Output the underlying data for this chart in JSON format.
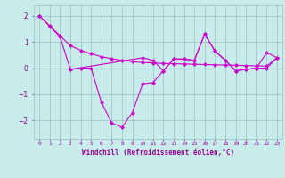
{
  "background_color": "#c8ecec",
  "line_color": "#cc00cc",
  "grid_color": "#9bbfbf",
  "font_color": "#990099",
  "xlabel": "Windchill (Refroidissement éolien,°C)",
  "ylim": [
    -2.7,
    2.4
  ],
  "yticks": [
    -2,
    -1,
    0,
    1,
    2
  ],
  "xlim": [
    -0.5,
    23.5
  ],
  "line_a_x": [
    0,
    1,
    2,
    3,
    10,
    11,
    12,
    13,
    14,
    15,
    16,
    17,
    18,
    19,
    20,
    21,
    22,
    23
  ],
  "line_a_y": [
    2.0,
    1.6,
    1.2,
    -0.05,
    0.4,
    0.3,
    -0.1,
    0.35,
    0.35,
    0.3,
    1.3,
    0.65,
    0.3,
    -0.1,
    -0.05,
    0.0,
    0.6,
    0.4
  ],
  "line_b_x": [
    0,
    1,
    2,
    3,
    4,
    5,
    6,
    7,
    8,
    9,
    10,
    11,
    12,
    13,
    14,
    15,
    16,
    17,
    18,
    19,
    20,
    21,
    22,
    23
  ],
  "line_b_y": [
    2.0,
    1.62,
    1.24,
    0.86,
    0.68,
    0.55,
    0.44,
    0.36,
    0.3,
    0.25,
    0.22,
    0.2,
    0.18,
    0.17,
    0.16,
    0.15,
    0.14,
    0.13,
    0.12,
    0.11,
    0.1,
    0.09,
    0.08,
    0.4
  ],
  "line_c_x": [
    3,
    4,
    5,
    6,
    7,
    8,
    9,
    10,
    11,
    12,
    13,
    14,
    15,
    16,
    17,
    18,
    19,
    20,
    21,
    22,
    23
  ],
  "line_c_y": [
    -0.05,
    0.0,
    0.0,
    -1.3,
    -2.1,
    -2.25,
    -1.7,
    -0.6,
    -0.55,
    -0.1,
    0.35,
    0.35,
    0.3,
    1.3,
    0.65,
    0.3,
    -0.1,
    -0.05,
    0.0,
    0.0,
    0.4
  ]
}
